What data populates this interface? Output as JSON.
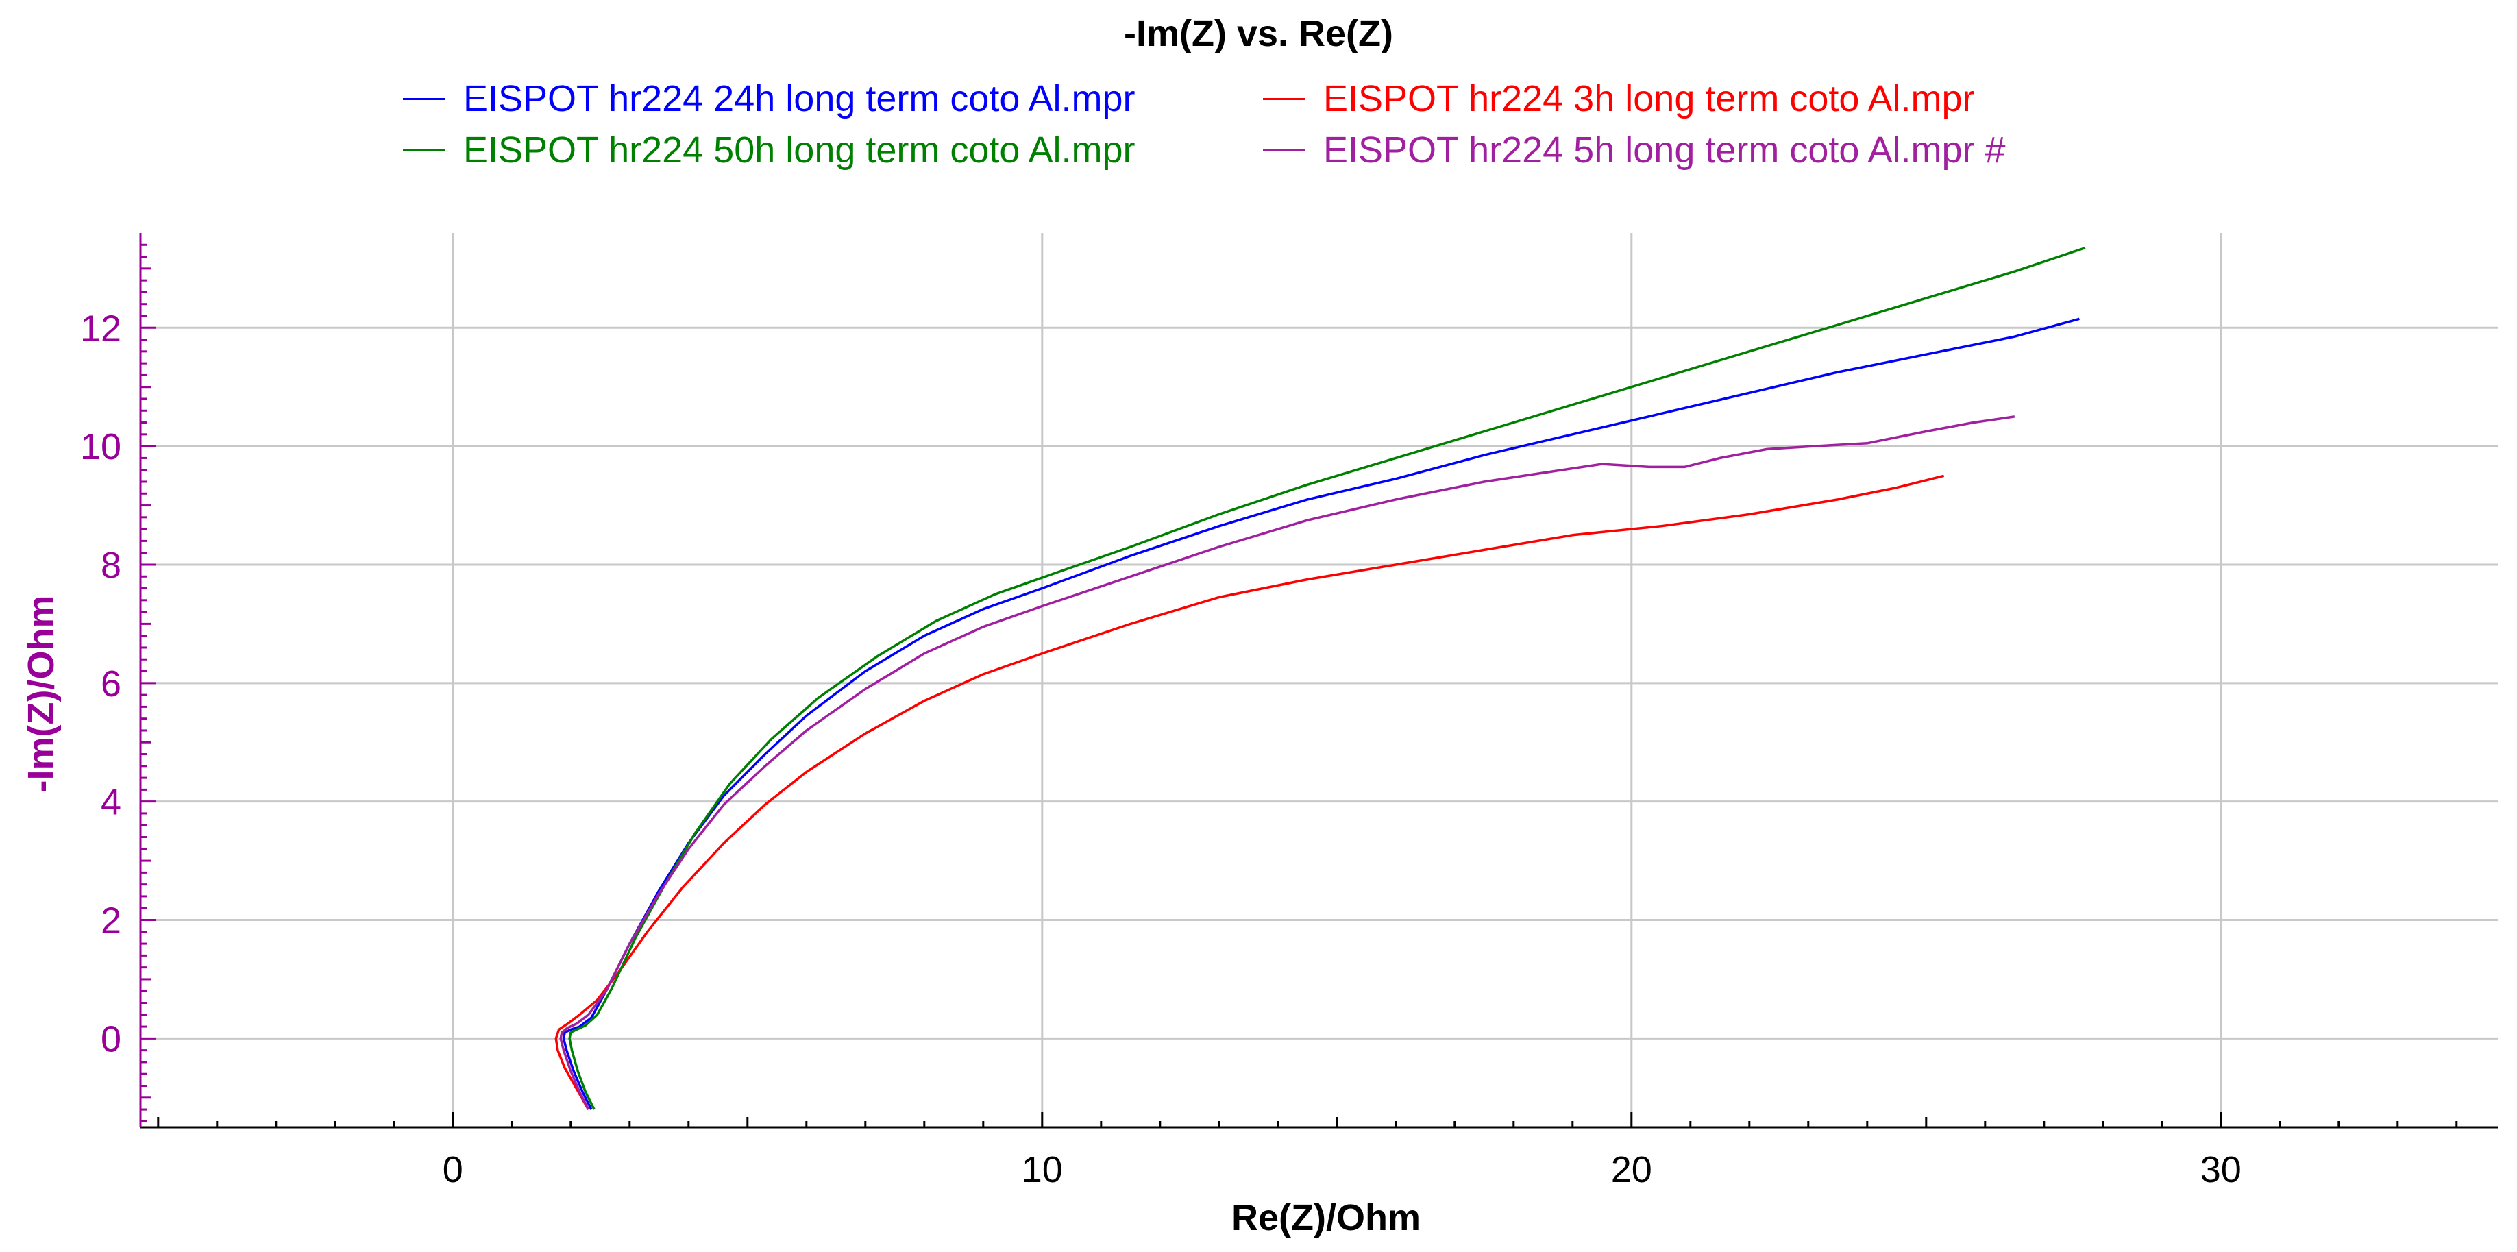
{
  "chart_data": {
    "type": "line",
    "title": "-Im(Z) vs. Re(Z)",
    "xlabel": "Re(Z)/Ohm",
    "ylabel": "-Im(Z)/Ohm",
    "xlim": [
      -5.3,
      34.7
    ],
    "ylim": [
      -1.5,
      13.6
    ],
    "xticks": [
      0,
      10,
      20,
      30
    ],
    "yticks": [
      0,
      2,
      4,
      6,
      8,
      10,
      12
    ],
    "grid": true,
    "legend_position": "top",
    "colors": {
      "xaxis": "#000000",
      "yaxis": "#990099",
      "grid": "#c8c8c8"
    },
    "series": [
      {
        "name": "EISPOT hr224 24h long term coto Al.mpr",
        "color": "#0000ff",
        "x": [
          2.35,
          2.2,
          2.05,
          1.93,
          1.88,
          1.9,
          2.0,
          2.15,
          2.35,
          2.6,
          3.0,
          3.5,
          4.0,
          4.6,
          5.3,
          6.0,
          7.0,
          8.0,
          9.0,
          10.0,
          11.5,
          13.0,
          14.5,
          16.0,
          17.5,
          19.0,
          20.5,
          22.0,
          23.5,
          25.0,
          26.5,
          27.6
        ],
        "y": [
          -1.2,
          -0.9,
          -0.55,
          -0.2,
          0.0,
          0.1,
          0.15,
          0.2,
          0.35,
          0.8,
          1.6,
          2.5,
          3.3,
          4.1,
          4.8,
          5.45,
          6.2,
          6.8,
          7.25,
          7.6,
          8.15,
          8.65,
          9.1,
          9.45,
          9.85,
          10.2,
          10.55,
          10.9,
          11.25,
          11.55,
          11.85,
          12.15
        ]
      },
      {
        "name": "EISPOT hr224 3h long term coto Al.mpr",
        "color": "#ff0000",
        "x": [
          2.3,
          2.1,
          1.9,
          1.78,
          1.75,
          1.8,
          1.95,
          2.15,
          2.45,
          2.8,
          3.3,
          3.9,
          4.6,
          5.3,
          6.0,
          7.0,
          8.0,
          9.0,
          10.0,
          11.5,
          13.0,
          14.5,
          16.0,
          17.5,
          19.0,
          20.5,
          22.0,
          23.5,
          24.5,
          25.3
        ],
        "y": [
          -1.2,
          -0.85,
          -0.5,
          -0.2,
          0.0,
          0.15,
          0.25,
          0.4,
          0.65,
          1.1,
          1.8,
          2.55,
          3.3,
          3.95,
          4.5,
          5.15,
          5.7,
          6.15,
          6.5,
          7.0,
          7.45,
          7.75,
          8.0,
          8.25,
          8.5,
          8.65,
          8.85,
          9.1,
          9.3,
          9.5
        ]
      },
      {
        "name": "EISPOT hr224 50h long term coto Al.mpr",
        "color": "#008000",
        "x": [
          2.4,
          2.25,
          2.12,
          2.02,
          1.98,
          2.0,
          2.1,
          2.25,
          2.45,
          2.7,
          3.1,
          3.6,
          4.1,
          4.7,
          5.4,
          6.2,
          7.2,
          8.2,
          9.2,
          10.2,
          11.5,
          13.0,
          14.5,
          16.0,
          17.5,
          19.0,
          20.5,
          22.0,
          23.5,
          25.0,
          26.5,
          27.7
        ],
        "y": [
          -1.2,
          -0.9,
          -0.55,
          -0.2,
          0.0,
          0.1,
          0.15,
          0.22,
          0.4,
          0.85,
          1.7,
          2.6,
          3.45,
          4.3,
          5.05,
          5.75,
          6.45,
          7.05,
          7.5,
          7.85,
          8.3,
          8.85,
          9.35,
          9.8,
          10.25,
          10.7,
          11.15,
          11.6,
          12.05,
          12.5,
          12.95,
          13.35
        ]
      },
      {
        "name": "EISPOT hr224 5h long term coto Al.mpr #",
        "color": "#a020a0",
        "x": [
          2.3,
          2.15,
          2.0,
          1.88,
          1.83,
          1.85,
          1.95,
          2.1,
          2.3,
          2.6,
          3.0,
          3.5,
          4.0,
          4.6,
          5.3,
          6.0,
          7.0,
          8.0,
          9.0,
          10.0,
          11.5,
          13.0,
          14.5,
          16.0,
          17.5,
          18.5,
          19.5,
          20.3,
          20.9,
          21.5,
          22.3,
          23.1,
          24.0,
          25.0,
          25.8,
          26.5
        ],
        "y": [
          -1.2,
          -0.9,
          -0.55,
          -0.2,
          0.0,
          0.1,
          0.18,
          0.25,
          0.4,
          0.8,
          1.6,
          2.45,
          3.2,
          3.95,
          4.6,
          5.2,
          5.9,
          6.5,
          6.95,
          7.3,
          7.8,
          8.3,
          8.75,
          9.1,
          9.4,
          9.55,
          9.7,
          9.65,
          9.65,
          9.8,
          9.95,
          10.0,
          10.05,
          10.25,
          10.4,
          10.5
        ]
      }
    ]
  }
}
